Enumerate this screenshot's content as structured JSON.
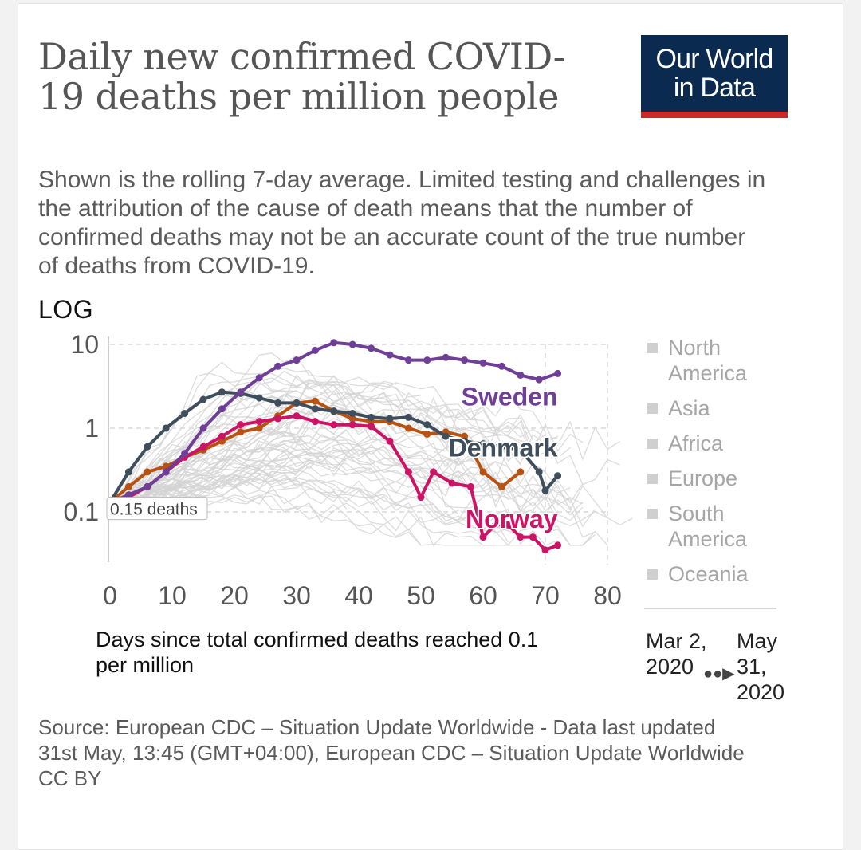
{
  "header": {
    "title": "Daily new confirmed COVID-19 deaths per million people",
    "subtitle": "Shown is the rolling 7-day average. Limited testing and challenges in the attribution of the cause of death means that the number of confirmed deaths may not be an accurate count of the true number of deaths from COVID-19.",
    "logo_line1": "Our World",
    "logo_line2": "in Data"
  },
  "scale_toggle": "LOG",
  "legend": {
    "items": [
      "North America",
      "Asia",
      "Africa",
      "Europe",
      "South America",
      "Oceania"
    ]
  },
  "timeline": {
    "start": "Mar 2, 2020",
    "end": "May 31, 2020"
  },
  "footer": {
    "source": "Source: European CDC – Situation Update Worldwide - Data last updated 31st May, 13:45 (GMT+04:00), European CDC – Situation Update Worldwide",
    "license": "CC BY"
  },
  "colors": {
    "sweden": "#6f3f97",
    "denmark": "#3e4e5c",
    "norway": "#cc1466",
    "orange": "#b85212",
    "background_lines": "#d3d3d3",
    "grid": "#d9d9d9"
  },
  "chart_data": {
    "type": "line",
    "xlabel": "Days since total confirmed deaths reached 0.1 per million",
    "ylabel": "",
    "x_ticks": [
      0,
      10,
      20,
      30,
      40,
      50,
      60,
      70,
      80
    ],
    "y_ticks": [
      {
        "value": 0.1,
        "label": "0.1"
      },
      {
        "value": 1,
        "label": "1"
      },
      {
        "value": 10,
        "label": "10"
      }
    ],
    "xlim": [
      0,
      80
    ],
    "ylim": [
      0.04,
      12
    ],
    "yscale": "log",
    "annotation": "0.15 deaths",
    "grid": true,
    "series": [
      {
        "name": "Sweden",
        "color_key": "sweden",
        "x": [
          0,
          3,
          6,
          9,
          12,
          15,
          18,
          21,
          24,
          27,
          30,
          33,
          36,
          39,
          42,
          45,
          48,
          51,
          54,
          57,
          60,
          63,
          66,
          69,
          72
        ],
        "y": [
          0.13,
          0.16,
          0.2,
          0.3,
          0.5,
          1.0,
          1.7,
          2.7,
          4.0,
          5.5,
          6.5,
          8.5,
          10.5,
          10.0,
          9.0,
          7.5,
          6.5,
          6.5,
          7.0,
          6.5,
          6.0,
          5.5,
          4.3,
          3.8,
          4.5
        ]
      },
      {
        "name": "Denmark",
        "color_key": "denmark",
        "x": [
          0,
          3,
          6,
          9,
          12,
          15,
          18,
          21,
          24,
          27,
          30,
          33,
          36,
          39,
          42,
          45,
          48,
          51,
          54,
          57,
          60,
          63,
          66,
          69,
          70,
          72
        ],
        "y": [
          0.13,
          0.3,
          0.6,
          1.0,
          1.5,
          2.2,
          2.7,
          2.6,
          2.3,
          2.0,
          2.0,
          1.7,
          1.6,
          1.5,
          1.35,
          1.3,
          1.35,
          1.1,
          0.8,
          0.7,
          0.65,
          0.6,
          0.55,
          0.3,
          0.18,
          0.27
        ]
      },
      {
        "name": "Norway",
        "color_key": "norway",
        "x": [
          0,
          3,
          6,
          9,
          12,
          15,
          18,
          21,
          24,
          27,
          30,
          33,
          36,
          39,
          42,
          45,
          48,
          50,
          52,
          55,
          58,
          60,
          62,
          64,
          66,
          68,
          70,
          72
        ],
        "y": [
          0.12,
          0.15,
          0.2,
          0.3,
          0.45,
          0.6,
          0.8,
          1.1,
          1.2,
          1.3,
          1.4,
          1.2,
          1.1,
          1.1,
          1.05,
          0.7,
          0.3,
          0.15,
          0.3,
          0.22,
          0.2,
          0.05,
          0.07,
          0.07,
          0.05,
          0.05,
          0.035,
          0.04
        ]
      },
      {
        "name": "",
        "color_key": "orange",
        "x": [
          0,
          3,
          6,
          9,
          12,
          15,
          18,
          21,
          24,
          27,
          30,
          33,
          36,
          39,
          42,
          45,
          48,
          51,
          54,
          57,
          60,
          63,
          66
        ],
        "y": [
          0.13,
          0.2,
          0.3,
          0.35,
          0.45,
          0.55,
          0.7,
          0.9,
          1.0,
          1.4,
          2.0,
          2.1,
          1.6,
          1.3,
          1.2,
          1.2,
          1.0,
          0.85,
          0.9,
          0.8,
          0.3,
          0.2,
          0.3
        ]
      }
    ]
  }
}
